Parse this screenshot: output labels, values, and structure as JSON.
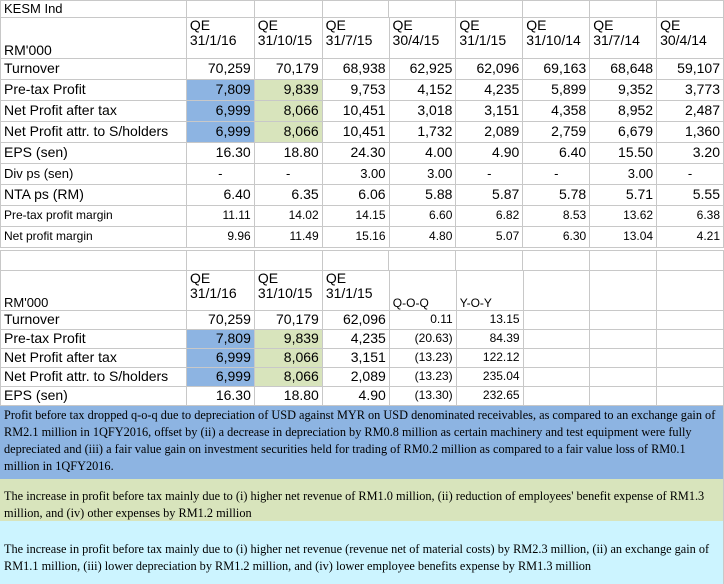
{
  "sheet_title": "KESM Ind",
  "unit_label": "RM'000",
  "table1": {
    "headers": [
      [
        "QE",
        "31/1/16"
      ],
      [
        "QE",
        "31/10/15"
      ],
      [
        "QE",
        "31/7/15"
      ],
      [
        "QE",
        "30/4/15"
      ],
      [
        "QE",
        "31/1/15"
      ],
      [
        "QE",
        "31/10/14"
      ],
      [
        "QE",
        "31/7/14"
      ],
      [
        "QE",
        "30/4/14"
      ]
    ],
    "rows": [
      {
        "label": "Turnover",
        "values": [
          "70,259",
          "70,179",
          "68,938",
          "62,925",
          "62,096",
          "69,163",
          "68,648",
          "59,107"
        ]
      },
      {
        "label": "Pre-tax Profit",
        "values": [
          "7,809",
          "9,839",
          "9,753",
          "4,152",
          "4,235",
          "5,899",
          "9,352",
          "3,773"
        ]
      },
      {
        "label": "Net Profit after tax",
        "values": [
          "6,999",
          "8,066",
          "10,451",
          "3,018",
          "3,151",
          "4,358",
          "8,952",
          "2,487"
        ]
      },
      {
        "label": "Net Profit attr. to S/holders",
        "values": [
          "6,999",
          "8,066",
          "10,451",
          "1,732",
          "2,089",
          "2,759",
          "6,679",
          "1,360"
        ]
      },
      {
        "label": "EPS (sen)",
        "values": [
          "16.30",
          "18.80",
          "24.30",
          "4.00",
          "4.90",
          "6.40",
          "15.50",
          "3.20"
        ]
      },
      {
        "label": "Div ps (sen)",
        "values": [
          "-",
          "-",
          "3.00",
          "3.00",
          "-",
          "-",
          "3.00",
          "-"
        ]
      },
      {
        "label": "NTA ps (RM)",
        "values": [
          "6.40",
          "6.35",
          "6.06",
          "5.88",
          "5.87",
          "5.78",
          "5.71",
          "5.55"
        ]
      },
      {
        "label": "Pre-tax profit margin",
        "values": [
          "11.11",
          "14.02",
          "14.15",
          "6.60",
          "6.82",
          "8.53",
          "13.62",
          "6.38"
        ]
      },
      {
        "label": "Net profit margin",
        "values": [
          "9.96",
          "11.49",
          "15.16",
          "4.80",
          "5.07",
          "6.30",
          "13.04",
          "4.21"
        ]
      }
    ]
  },
  "table2": {
    "headers": [
      [
        "QE",
        "31/1/16"
      ],
      [
        "QE",
        "31/10/15"
      ],
      [
        "QE",
        "31/1/15"
      ]
    ],
    "col_qoq": "Q-O-Q",
    "col_yoy": "Y-O-Y",
    "rows": [
      {
        "label": "Turnover",
        "values": [
          "70,259",
          "70,179",
          "62,096"
        ],
        "qoq": "0.11",
        "yoy": "13.15"
      },
      {
        "label": "Pre-tax Profit",
        "values": [
          "7,809",
          "9,839",
          "4,235"
        ],
        "qoq": "(20.63)",
        "yoy": "84.39"
      },
      {
        "label": "Net Profit after tax",
        "values": [
          "6,999",
          "8,066",
          "3,151"
        ],
        "qoq": "(13.23)",
        "yoy": "122.12"
      },
      {
        "label": "Net Profit attr. to S/holders",
        "values": [
          "6,999",
          "8,066",
          "2,089"
        ],
        "qoq": "(13.23)",
        "yoy": "235.04"
      },
      {
        "label": "EPS (sen)",
        "values": [
          "16.30",
          "18.80",
          "4.90"
        ],
        "qoq": "(13.30)",
        "yoy": "232.65"
      }
    ]
  },
  "notes": [
    "Profit before tax dropped q-o-q due to depreciation of USD against MYR on USD denominated receivables, as compared to an exchange gain of RM2.1 million in 1QFY2016, offset by (ii) a decrease in depreciation by RM0.8 million as certain machinery and test equipment were fully  depreciated  and  (iii) a fair value gain on investment securities held for trading of RM0.2 million as compared to a fair value loss of RM0.1 million in 1QFY2016.",
    "The increase in profit before tax mainly due to (i) higher net revenue of RM1.0 million, (ii) reduction of employees' benefit expense of RM1.3 million,  and (iv) other expenses by RM1.2 million",
    "The increase in profit before tax mainly due to (i) higher net revenue (revenue net of material costs) by RM2.3 million, (ii) an exchange gain of RM1.1 million, (iii) lower depreciation by RM1.2 million, and (iv) lower employee benefits expense by RM1.3 million"
  ],
  "colors": {
    "highlight_blue": "#8db4e2",
    "highlight_green": "#d8e4bc",
    "note_cyan": "#ccf4ff",
    "grid_line": "#c8c8c8"
  }
}
